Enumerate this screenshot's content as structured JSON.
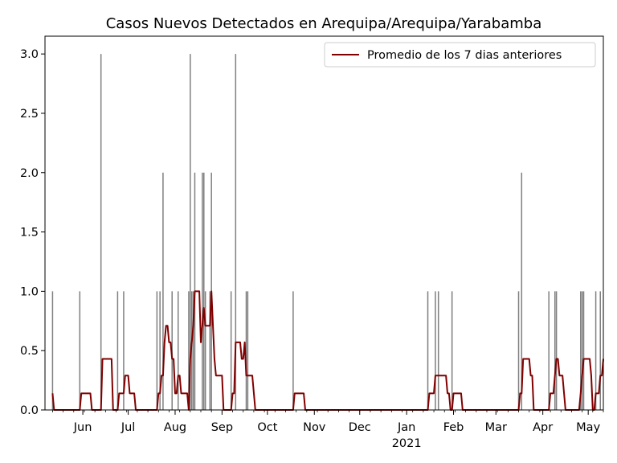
{
  "chart_data": {
    "type": "bar",
    "title": "Casos Nuevos Detectados en Arequipa/Arequipa/Yarabamba",
    "xlabel": "",
    "ylabel": "",
    "x_range": [
      "2020-05-07",
      "2021-05-11"
    ],
    "ylim": [
      0,
      3.15
    ],
    "grid": false,
    "legend_position": "top-right",
    "y_ticks": [
      "0.0",
      "0.5",
      "1.0",
      "1.5",
      "2.0",
      "2.5",
      "3.0"
    ],
    "x_ticks": [
      {
        "date": "2020-06-01",
        "label": "Jun"
      },
      {
        "date": "2020-07-01",
        "label": "Jul"
      },
      {
        "date": "2020-08-01",
        "label": "Aug"
      },
      {
        "date": "2020-09-01",
        "label": "Sep"
      },
      {
        "date": "2020-10-01",
        "label": "Oct"
      },
      {
        "date": "2020-11-01",
        "label": "Nov"
      },
      {
        "date": "2020-12-01",
        "label": "Dec"
      },
      {
        "date": "2021-01-01",
        "label": "Jan",
        "sublabel": "2021"
      },
      {
        "date": "2021-02-01",
        "label": "Feb"
      },
      {
        "date": "2021-03-01",
        "label": "Mar"
      },
      {
        "date": "2021-04-01",
        "label": "Apr"
      },
      {
        "date": "2021-05-01",
        "label": "May"
      }
    ],
    "series": [
      {
        "type": "bar",
        "color": "#808080",
        "points": [
          {
            "date": "2020-05-12",
            "value": 1
          },
          {
            "date": "2020-05-30",
            "value": 1
          },
          {
            "date": "2020-06-13",
            "value": 3
          },
          {
            "date": "2020-06-24",
            "value": 1
          },
          {
            "date": "2020-06-28",
            "value": 1
          },
          {
            "date": "2020-07-20",
            "value": 1
          },
          {
            "date": "2020-07-22",
            "value": 1
          },
          {
            "date": "2020-07-24",
            "value": 2
          },
          {
            "date": "2020-07-30",
            "value": 1
          },
          {
            "date": "2020-08-03",
            "value": 1
          },
          {
            "date": "2020-08-10",
            "value": 1
          },
          {
            "date": "2020-08-11",
            "value": 3
          },
          {
            "date": "2020-08-12",
            "value": 1
          },
          {
            "date": "2020-08-13",
            "value": 1
          },
          {
            "date": "2020-08-14",
            "value": 2
          },
          {
            "date": "2020-08-19",
            "value": 2
          },
          {
            "date": "2020-08-20",
            "value": 2
          },
          {
            "date": "2020-08-21",
            "value": 1
          },
          {
            "date": "2020-08-24",
            "value": 1
          },
          {
            "date": "2020-08-25",
            "value": 2
          },
          {
            "date": "2020-09-07",
            "value": 1
          },
          {
            "date": "2020-09-10",
            "value": 3
          },
          {
            "date": "2020-09-17",
            "value": 1
          },
          {
            "date": "2020-09-18",
            "value": 1
          },
          {
            "date": "2020-10-18",
            "value": 1
          },
          {
            "date": "2021-01-15",
            "value": 1
          },
          {
            "date": "2021-01-20",
            "value": 1
          },
          {
            "date": "2021-01-22",
            "value": 1
          },
          {
            "date": "2021-01-31",
            "value": 1
          },
          {
            "date": "2021-03-16",
            "value": 1
          },
          {
            "date": "2021-03-18",
            "value": 2
          },
          {
            "date": "2021-04-05",
            "value": 1
          },
          {
            "date": "2021-04-09",
            "value": 1
          },
          {
            "date": "2021-04-10",
            "value": 1
          },
          {
            "date": "2021-04-26",
            "value": 1
          },
          {
            "date": "2021-04-27",
            "value": 1
          },
          {
            "date": "2021-04-28",
            "value": 1
          },
          {
            "date": "2021-05-06",
            "value": 1
          },
          {
            "date": "2021-05-09",
            "value": 1
          }
        ]
      },
      {
        "type": "line",
        "name": "Promedio de los 7 dias anteriores",
        "color": "#800000",
        "points": [
          [
            "2020-05-12",
            0.14
          ],
          [
            "2020-05-13",
            0
          ],
          [
            "2020-05-30",
            0
          ],
          [
            "2020-05-31",
            0.14
          ],
          [
            "2020-06-06",
            0.14
          ],
          [
            "2020-06-07",
            0
          ],
          [
            "2020-06-13",
            0
          ],
          [
            "2020-06-14",
            0.43
          ],
          [
            "2020-06-20",
            0.43
          ],
          [
            "2020-06-21",
            0
          ],
          [
            "2020-06-24",
            0
          ],
          [
            "2020-06-25",
            0.14
          ],
          [
            "2020-06-28",
            0.14
          ],
          [
            "2020-06-29",
            0.29
          ],
          [
            "2020-07-01",
            0.29
          ],
          [
            "2020-07-02",
            0.14
          ],
          [
            "2020-07-05",
            0.14
          ],
          [
            "2020-07-06",
            0
          ],
          [
            "2020-07-20",
            0
          ],
          [
            "2020-07-21",
            0.14
          ],
          [
            "2020-07-22",
            0.14
          ],
          [
            "2020-07-23",
            0.29
          ],
          [
            "2020-07-24",
            0.29
          ],
          [
            "2020-07-25",
            0.57
          ],
          [
            "2020-07-26",
            0.71
          ],
          [
            "2020-07-27",
            0.71
          ],
          [
            "2020-07-28",
            0.57
          ],
          [
            "2020-07-29",
            0.57
          ],
          [
            "2020-07-30",
            0.43
          ],
          [
            "2020-07-31",
            0.43
          ],
          [
            "2020-08-01",
            0.14
          ],
          [
            "2020-08-02",
            0.14
          ],
          [
            "2020-08-03",
            0.29
          ],
          [
            "2020-08-04",
            0.29
          ],
          [
            "2020-08-05",
            0.14
          ],
          [
            "2020-08-09",
            0.14
          ],
          [
            "2020-08-10",
            0
          ],
          [
            "2020-08-11",
            0.43
          ],
          [
            "2020-08-12",
            0.57
          ],
          [
            "2020-08-13",
            0.71
          ],
          [
            "2020-08-14",
            1.0
          ],
          [
            "2020-08-17",
            1.0
          ],
          [
            "2020-08-18",
            0.57
          ],
          [
            "2020-08-19",
            0.71
          ],
          [
            "2020-08-20",
            0.86
          ],
          [
            "2020-08-21",
            0.71
          ],
          [
            "2020-08-24",
            0.71
          ],
          [
            "2020-08-25",
            1.0
          ],
          [
            "2020-08-26",
            0.71
          ],
          [
            "2020-08-27",
            0.43
          ],
          [
            "2020-08-28",
            0.29
          ],
          [
            "2020-09-01",
            0.29
          ],
          [
            "2020-09-02",
            0
          ],
          [
            "2020-09-07",
            0
          ],
          [
            "2020-09-08",
            0.14
          ],
          [
            "2020-09-09",
            0.14
          ],
          [
            "2020-09-10",
            0.57
          ],
          [
            "2020-09-13",
            0.57
          ],
          [
            "2020-09-14",
            0.43
          ],
          [
            "2020-09-15",
            0.43
          ],
          [
            "2020-09-16",
            0.57
          ],
          [
            "2020-09-17",
            0.29
          ],
          [
            "2020-09-21",
            0.29
          ],
          [
            "2020-09-23",
            0
          ],
          [
            "2020-10-18",
            0
          ],
          [
            "2020-10-19",
            0.14
          ],
          [
            "2020-10-25",
            0.14
          ],
          [
            "2020-10-26",
            0
          ],
          [
            "2021-01-15",
            0
          ],
          [
            "2021-01-16",
            0.14
          ],
          [
            "2021-01-19",
            0.14
          ],
          [
            "2021-01-20",
            0.29
          ],
          [
            "2021-01-27",
            0.29
          ],
          [
            "2021-01-28",
            0.14
          ],
          [
            "2021-01-29",
            0.14
          ],
          [
            "2021-01-30",
            0
          ],
          [
            "2021-01-31",
            0
          ],
          [
            "2021-02-01",
            0.14
          ],
          [
            "2021-02-06",
            0.14
          ],
          [
            "2021-02-07",
            0
          ],
          [
            "2021-03-16",
            0
          ],
          [
            "2021-03-17",
            0.14
          ],
          [
            "2021-03-18",
            0.14
          ],
          [
            "2021-03-19",
            0.43
          ],
          [
            "2021-03-23",
            0.43
          ],
          [
            "2021-03-24",
            0.29
          ],
          [
            "2021-03-25",
            0.29
          ],
          [
            "2021-03-26",
            0
          ],
          [
            "2021-04-05",
            0
          ],
          [
            "2021-04-06",
            0.14
          ],
          [
            "2021-04-08",
            0.14
          ],
          [
            "2021-04-09",
            0.29
          ],
          [
            "2021-04-10",
            0.43
          ],
          [
            "2021-04-11",
            0.43
          ],
          [
            "2021-04-12",
            0.29
          ],
          [
            "2021-04-14",
            0.29
          ],
          [
            "2021-04-16",
            0
          ],
          [
            "2021-04-25",
            0
          ],
          [
            "2021-04-26",
            0.14
          ],
          [
            "2021-04-27",
            0.29
          ],
          [
            "2021-04-28",
            0.43
          ],
          [
            "2021-05-02",
            0.43
          ],
          [
            "2021-05-03",
            0.29
          ],
          [
            "2021-05-04",
            0
          ],
          [
            "2021-05-05",
            0
          ],
          [
            "2021-05-06",
            0.14
          ],
          [
            "2021-05-08",
            0.14
          ],
          [
            "2021-05-09",
            0.29
          ],
          [
            "2021-05-10",
            0.29
          ],
          [
            "2021-05-11",
            0.43
          ]
        ]
      }
    ]
  }
}
